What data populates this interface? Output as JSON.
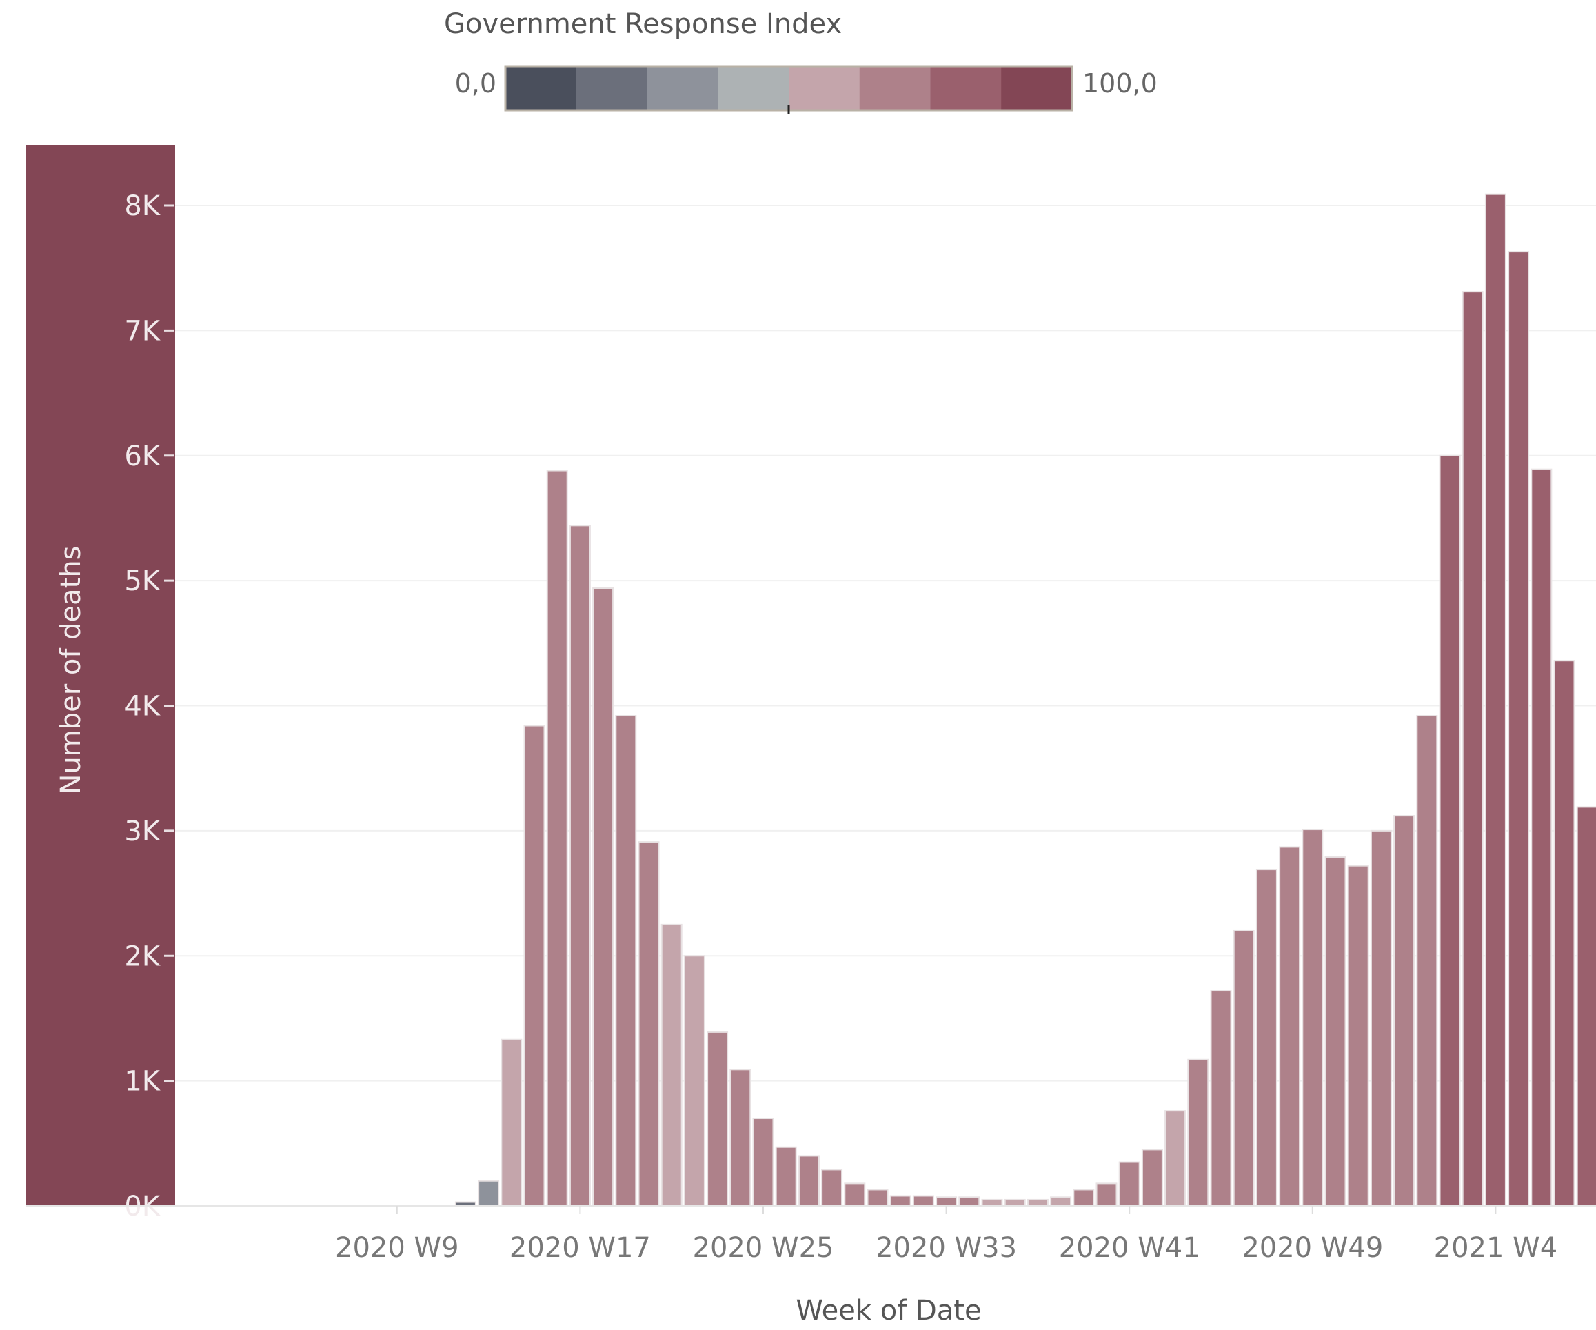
{
  "chart_data": {
    "type": "bar",
    "legend": {
      "title": "Government Response Index",
      "min_label": "0,0",
      "max_label": "100,0",
      "steps": [
        "#4a4f5c",
        "#6b6f7b",
        "#8e929b",
        "#adb2b4",
        "#c4a5ab",
        "#ae818a",
        "#9a606d",
        "#834655"
      ],
      "placement": "top-center"
    },
    "xlabel": "Week of Date",
    "ylabel": "Number of deaths",
    "ylim": [
      0,
      8000
    ],
    "yticks": [
      {
        "value": 0,
        "label": "0K"
      },
      {
        "value": 1000,
        "label": "1K"
      },
      {
        "value": 2000,
        "label": "2K"
      },
      {
        "value": 3000,
        "label": "3K"
      },
      {
        "value": 4000,
        "label": "4K"
      },
      {
        "value": 5000,
        "label": "5K"
      },
      {
        "value": 6000,
        "label": "6K"
      },
      {
        "value": 7000,
        "label": "7K"
      },
      {
        "value": 8000,
        "label": "8K"
      }
    ],
    "xticks": [
      {
        "week": "2020 W9",
        "label": "2020 W9"
      },
      {
        "week": "2020 W17",
        "label": "2020 W17"
      },
      {
        "week": "2020 W25",
        "label": "2020 W25"
      },
      {
        "week": "2020 W33",
        "label": "2020 W33"
      },
      {
        "week": "2020 W41",
        "label": "2020 W41"
      },
      {
        "week": "2020 W49",
        "label": "2020 W49"
      },
      {
        "week": "2021 W4",
        "label": "2021 W4"
      }
    ],
    "grid": true,
    "weeks": [
      "2020 W5",
      "2020 W6",
      "2020 W7",
      "2020 W8",
      "2020 W9",
      "2020 W10",
      "2020 W11",
      "2020 W12",
      "2020 W13",
      "2020 W14",
      "2020 W15",
      "2020 W16",
      "2020 W17",
      "2020 W18",
      "2020 W19",
      "2020 W20",
      "2020 W21",
      "2020 W22",
      "2020 W23",
      "2020 W24",
      "2020 W25",
      "2020 W26",
      "2020 W27",
      "2020 W28",
      "2020 W29",
      "2020 W30",
      "2020 W31",
      "2020 W32",
      "2020 W33",
      "2020 W34",
      "2020 W35",
      "2020 W36",
      "2020 W37",
      "2020 W38",
      "2020 W39",
      "2020 W40",
      "2020 W41",
      "2020 W42",
      "2020 W43",
      "2020 W44",
      "2020 W45",
      "2020 W46",
      "2020 W47",
      "2020 W48",
      "2020 W49",
      "2020 W50",
      "2020 W51",
      "2020 W52",
      "2020 W53",
      "2021 W1",
      "2021 W2",
      "2021 W3",
      "2021 W4",
      "2021 W5",
      "2021 W6",
      "2021 W7",
      "2021 W8"
    ],
    "values": [
      0,
      0,
      0,
      0,
      0,
      0,
      0,
      30,
      200,
      1330,
      3840,
      5880,
      5440,
      4940,
      3920,
      2910,
      2250,
      2000,
      1390,
      1090,
      700,
      470,
      400,
      290,
      180,
      130,
      80,
      80,
      70,
      70,
      50,
      50,
      50,
      70,
      130,
      180,
      350,
      450,
      760,
      1170,
      1720,
      2200,
      2690,
      2870,
      3010,
      2790,
      2720,
      3000,
      3120,
      3920,
      6000,
      7310,
      8090,
      7630,
      5890,
      4360,
      3190
    ],
    "gri_values": [
      0,
      0,
      0,
      0,
      0,
      0,
      0,
      15,
      30,
      55,
      68,
      68,
      68,
      68,
      68,
      68,
      55,
      55,
      68,
      68,
      68,
      68,
      68,
      68,
      68,
      68,
      68,
      68,
      68,
      68,
      55,
      55,
      55,
      55,
      68,
      68,
      68,
      68,
      55,
      68,
      68,
      68,
      68,
      68,
      68,
      68,
      68,
      68,
      68,
      68,
      82,
      82,
      82,
      82,
      82,
      82,
      82
    ]
  }
}
